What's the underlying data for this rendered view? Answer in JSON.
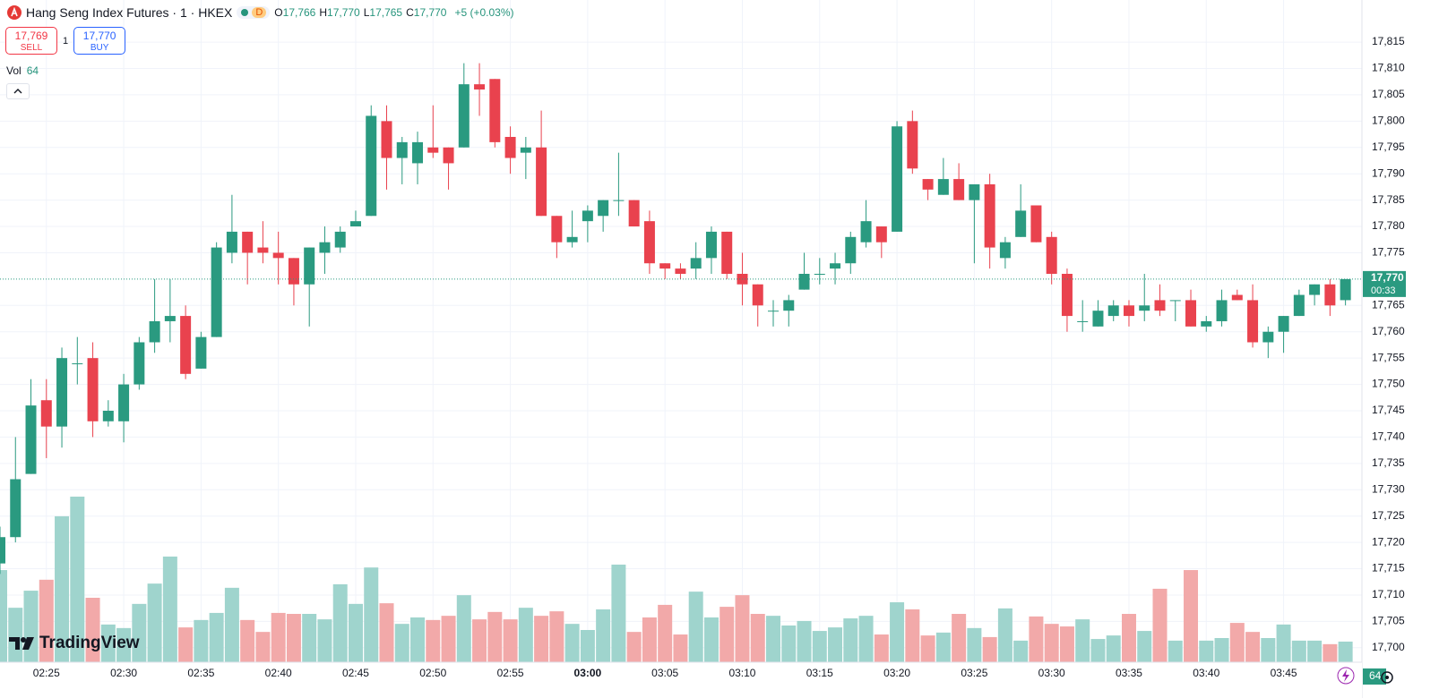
{
  "header": {
    "title": "Hang Seng Index Futures · 1 · HKEX",
    "badge": "D",
    "ohlc": [
      {
        "label": "O",
        "value": "17,766"
      },
      {
        "label": "H",
        "value": "17,770"
      },
      {
        "label": "L",
        "value": "17,765"
      },
      {
        "label": "C",
        "value": "17,770"
      }
    ],
    "change": "+5 (+0.03%)"
  },
  "trade": {
    "sell_price": "17,769",
    "sell": "SELL",
    "spread": "1",
    "buy_price": "17,770",
    "buy": "BUY"
  },
  "volume_legend": "Vol",
  "brand": "TradingView",
  "chart_data": {
    "type": "candlestick",
    "categories": [
      null,
      null,
      null,
      "02:25",
      null,
      null,
      null,
      null,
      "02:30",
      null,
      null,
      null,
      null,
      "02:35",
      null,
      null,
      null,
      null,
      "02:40",
      null,
      null,
      null,
      null,
      "02:45",
      null,
      null,
      null,
      null,
      "02:50",
      null,
      null,
      null,
      null,
      "02:55",
      null,
      null,
      null,
      null,
      "03:00",
      null,
      null,
      null,
      null,
      "03:05",
      null,
      null,
      null,
      null,
      "03:10",
      null,
      null,
      null,
      null,
      "03:15",
      null,
      null,
      null,
      null,
      "03:20",
      null,
      null,
      null,
      null,
      "03:25",
      null,
      null,
      null,
      null,
      "03:30",
      null,
      null,
      null,
      null,
      "03:35",
      null,
      null,
      null,
      null,
      "03:40",
      null,
      null,
      null,
      null,
      "03:45",
      null,
      null,
      null,
      null
    ],
    "open": [
      17716,
      17721,
      17733,
      17747,
      17742,
      17754,
      17755,
      17743,
      17743,
      17750,
      17758,
      17762,
      17763,
      17753,
      17759,
      17775,
      17779,
      17776,
      17775,
      17774,
      17769,
      17775,
      17776,
      17780,
      17782,
      17800,
      17793,
      17792,
      17795,
      17795,
      17795,
      17807,
      17808,
      17797,
      17794,
      17795,
      17782,
      17777,
      17781,
      17782,
      17785,
      17785,
      17781,
      17773,
      17772,
      17772,
      17774,
      17779,
      17771,
      17769,
      17764,
      17764,
      17768,
      17771,
      17772,
      17773,
      17777,
      17780,
      17779,
      17800,
      17789,
      17786,
      17789,
      17785,
      17788,
      17774,
      17778,
      17784,
      17778,
      17771,
      17762,
      17761,
      17763,
      17765,
      17764,
      17766,
      17766,
      17766,
      17761,
      17762,
      17767,
      17766,
      17758,
      17760,
      17763,
      17767,
      17769,
      17766
    ],
    "high": [
      17723,
      17740,
      17751,
      17751,
      17757,
      17759,
      17758,
      17747,
      17752,
      17759,
      17770,
      17770,
      17765,
      17760,
      17777,
      17786,
      17779,
      17781,
      17779,
      17774,
      17776,
      17780,
      17780,
      17783,
      17803,
      17803,
      17797,
      17798,
      17803,
      17795,
      17811,
      17811,
      17808,
      17799,
      17797,
      17802,
      17782,
      17783,
      17784,
      17785,
      17794,
      17785,
      17783,
      17773,
      17773,
      17777,
      17780,
      17779,
      17775,
      17769,
      17766,
      17767,
      17775,
      17774,
      17775,
      17779,
      17785,
      17780,
      17800,
      17802,
      17789,
      17793,
      17792,
      17788,
      17790,
      17778,
      17788,
      17784,
      17779,
      17772,
      17766,
      17766,
      17766,
      17766,
      17771,
      17769,
      17766,
      17768,
      17763,
      17768,
      17768,
      17769,
      17761,
      17763,
      17768,
      17769,
      17770,
      17770
    ],
    "low": [
      17714,
      17720,
      17733,
      17736,
      17738,
      17750,
      17740,
      17742,
      17739,
      17749,
      17756,
      17758,
      17751,
      17753,
      17759,
      17773,
      17769,
      17773,
      17769,
      17765,
      17761,
      17771,
      17775,
      17780,
      17782,
      17787,
      17788,
      17788,
      17793,
      17787,
      17795,
      17801,
      17795,
      17790,
      17789,
      17782,
      17774,
      17776,
      17777,
      17779,
      17782,
      17780,
      17771,
      17770,
      17770,
      17770,
      17771,
      17770,
      17765,
      17761,
      17761,
      17761,
      17768,
      17769,
      17769,
      17771,
      17776,
      17774,
      17779,
      17790,
      17785,
      17786,
      17785,
      17773,
      17772,
      17772,
      17778,
      17777,
      17769,
      17760,
      17760,
      17761,
      17762,
      17761,
      17762,
      17763,
      17762,
      17761,
      17760,
      17761,
      17766,
      17757,
      17755,
      17756,
      17763,
      17765,
      17763,
      17765
    ],
    "close": [
      17721,
      17732,
      17746,
      17742,
      17755,
      17754,
      17743,
      17745,
      17750,
      17758,
      17762,
      17763,
      17752,
      17759,
      17776,
      17779,
      17775,
      17775,
      17774,
      17769,
      17776,
      17777,
      17779,
      17781,
      17801,
      17793,
      17796,
      17796,
      17794,
      17792,
      17807,
      17806,
      17796,
      17793,
      17795,
      17782,
      17777,
      17778,
      17783,
      17785,
      17785,
      17780,
      17773,
      17772,
      17771,
      17774,
      17779,
      17771,
      17769,
      17765,
      17764,
      17766,
      17771,
      17771,
      17773,
      17778,
      17781,
      17777,
      17799,
      17791,
      17787,
      17789,
      17785,
      17788,
      17776,
      17777,
      17783,
      17777,
      17771,
      17763,
      17762,
      17764,
      17765,
      17763,
      17765,
      17764,
      17766,
      17761,
      17762,
      17766,
      17766,
      17758,
      17760,
      17763,
      17767,
      17769,
      17765,
      17770
    ],
    "volume": [
      286,
      169,
      222,
      256,
      453,
      514,
      200,
      117,
      106,
      181,
      244,
      328,
      108,
      131,
      153,
      231,
      131,
      94,
      153,
      150,
      150,
      133,
      242,
      181,
      294,
      183,
      119,
      139,
      131,
      144,
      208,
      133,
      156,
      133,
      169,
      144,
      158,
      119,
      100,
      164,
      303,
      94,
      139,
      178,
      86,
      219,
      139,
      172,
      208,
      150,
      144,
      114,
      128,
      97,
      108,
      136,
      144,
      86,
      186,
      164,
      83,
      92,
      150,
      106,
      78,
      167,
      67,
      142,
      119,
      111,
      133,
      72,
      83,
      150,
      97,
      228,
      67,
      286,
      67,
      75,
      122,
      94,
      75,
      117,
      67,
      67,
      56,
      64
    ],
    "up_color": "#2a9a80",
    "down_color": "#e9424e",
    "volume_up_color": "#9fd4cd",
    "volume_down_color": "#f2a9a9",
    "ylim": [
      17693,
      17823
    ],
    "yticks": [
      {
        "value": 17815,
        "label": "17,815"
      },
      {
        "value": 17810,
        "label": "17,810"
      },
      {
        "value": 17805,
        "label": "17,805"
      },
      {
        "value": 17800,
        "label": "17,800"
      },
      {
        "value": 17795,
        "label": "17,795"
      },
      {
        "value": 17790,
        "label": "17,790"
      },
      {
        "value": 17785,
        "label": "17,785"
      },
      {
        "value": 17780,
        "label": "17,780"
      },
      {
        "value": 17775,
        "label": "17,775"
      },
      {
        "value": 17765,
        "label": "17,765"
      },
      {
        "value": 17760,
        "label": "17,760"
      },
      {
        "value": 17755,
        "label": "17,755"
      },
      {
        "value": 17750,
        "label": "17,750"
      },
      {
        "value": 17745,
        "label": "17,745"
      },
      {
        "value": 17740,
        "label": "17,740"
      },
      {
        "value": 17735,
        "label": "17,735"
      },
      {
        "value": 17730,
        "label": "17,730"
      },
      {
        "value": 17725,
        "label": "17,725"
      },
      {
        "value": 17720,
        "label": "17,720"
      },
      {
        "value": 17715,
        "label": "17,715"
      },
      {
        "value": 17710,
        "label": "17,710"
      },
      {
        "value": 17705,
        "label": "17,705"
      },
      {
        "value": 17700,
        "label": "17,700"
      }
    ],
    "last_price": {
      "value": 17770,
      "label": "17,770"
    },
    "countdown": "00:33",
    "grid": true
  }
}
